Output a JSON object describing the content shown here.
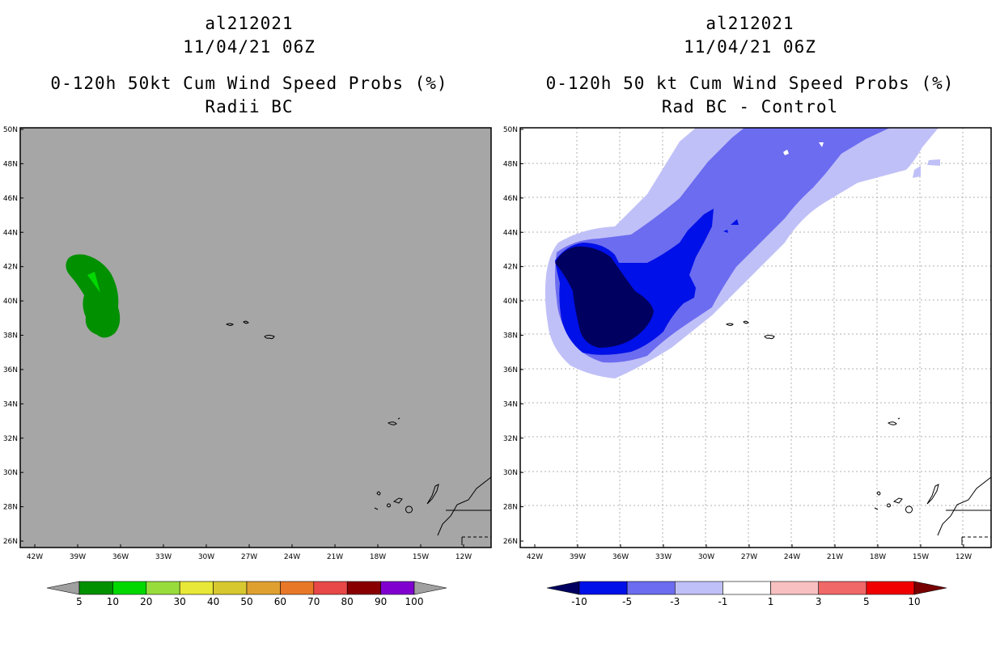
{
  "left": {
    "title_line1": "al212021",
    "title_line2": "11/04/21 06Z",
    "title_line3": "0-120h 50kt Cum Wind Speed Probs (%)",
    "title_line4": "Radii BC",
    "colorbar": {
      "labels": [
        "5",
        "10",
        "20",
        "30",
        "40",
        "50",
        "60",
        "70",
        "80",
        "90",
        "100"
      ],
      "colors": [
        "#a0a0a0",
        "#009000",
        "#00d800",
        "#98dc3c",
        "#e8e838",
        "#d8c830",
        "#e0a030",
        "#e87828",
        "#e84848",
        "#880000",
        "#8000d0",
        "#a0a0a0"
      ]
    }
  },
  "right": {
    "title_line1": "al212021",
    "title_line2": "11/04/21 06Z",
    "title_line3": "0-120h 50 kt Cum Wind Speed Probs (%)",
    "title_line4": "Rad BC - Control",
    "colorbar": {
      "labels": [
        "-10",
        "-5",
        "-3",
        "-1",
        "1",
        "3",
        "5",
        "10"
      ],
      "colors": [
        "#000060",
        "#0010e8",
        "#6c6cf0",
        "#c0c0f8",
        "#ffffff",
        "#f8c0c0",
        "#f06868",
        "#f00000",
        "#780000"
      ]
    }
  },
  "axes": {
    "lat_labels": [
      "50N",
      "48N",
      "46N",
      "44N",
      "42N",
      "40N",
      "38N",
      "36N",
      "34N",
      "32N",
      "30N",
      "28N",
      "26N"
    ],
    "lon_labels": [
      "42W",
      "39W",
      "36W",
      "33W",
      "30W",
      "27W",
      "24W",
      "21W",
      "18W",
      "15W",
      "12W"
    ]
  }
}
